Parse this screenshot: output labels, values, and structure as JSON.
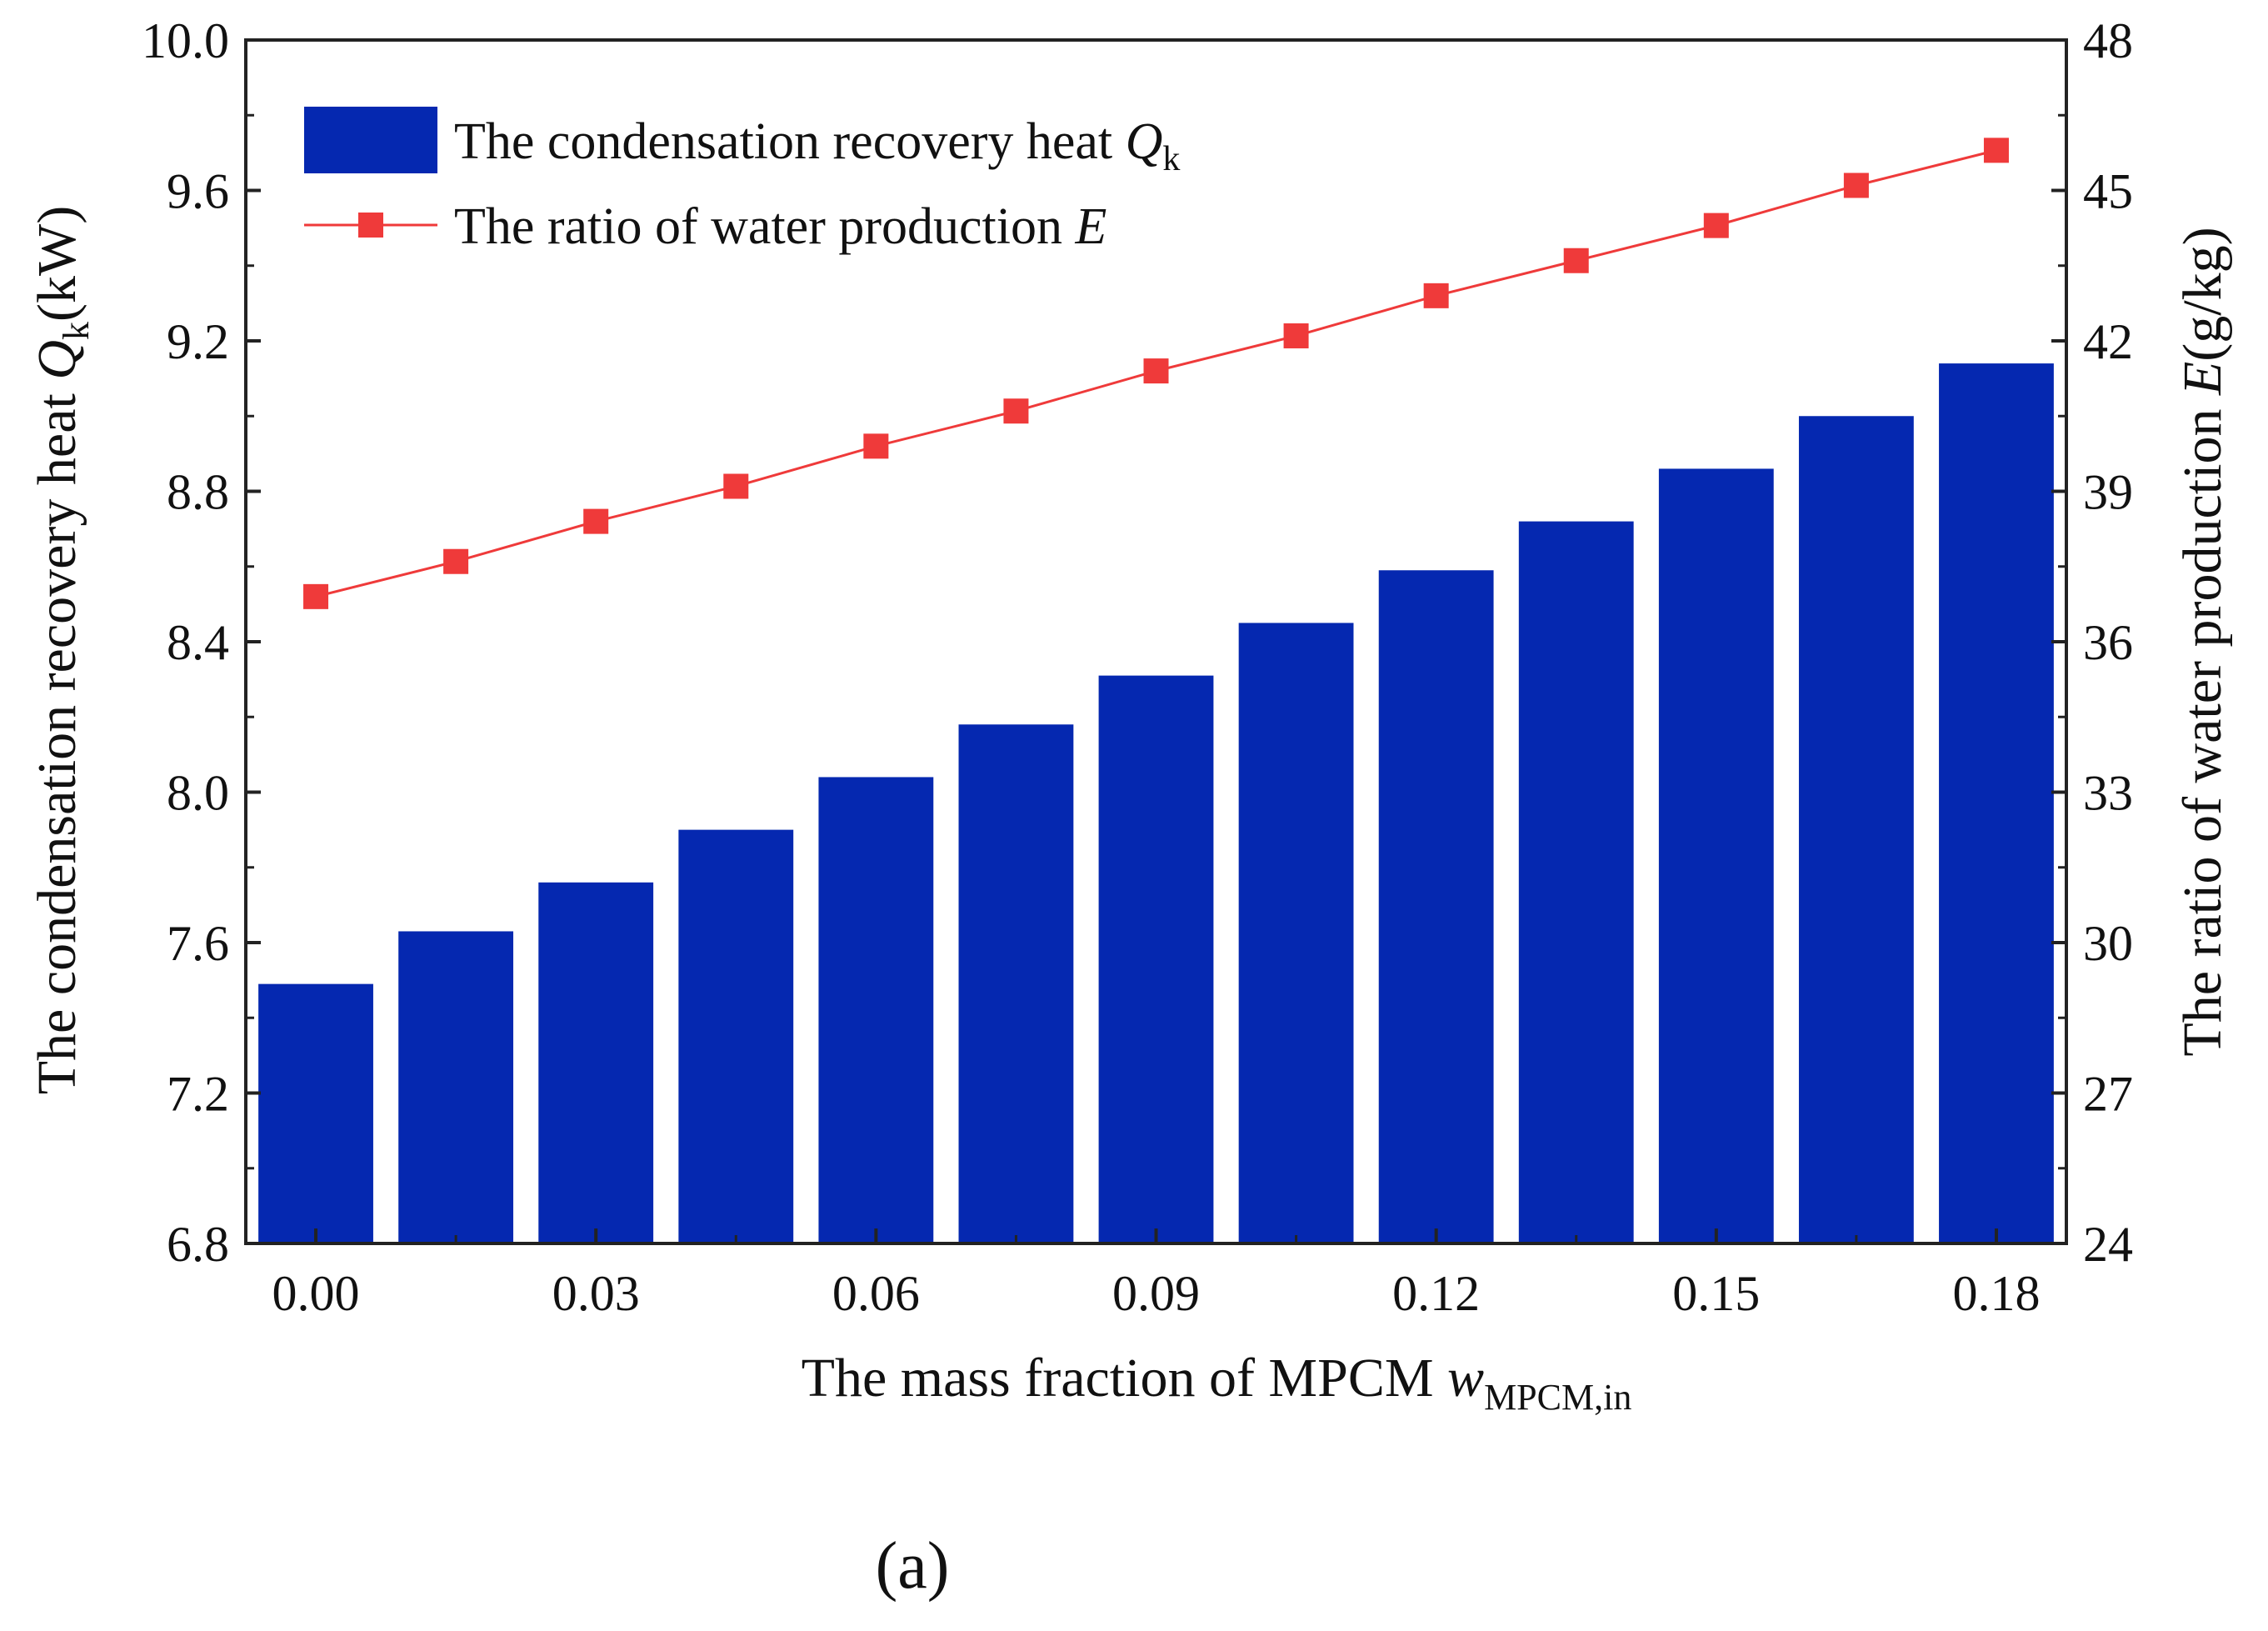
{
  "chart_data": {
    "type": "bar",
    "categories": [
      0.0,
      0.015,
      0.03,
      0.045,
      0.06,
      0.075,
      0.09,
      0.105,
      0.12,
      0.135,
      0.15,
      0.165,
      0.18
    ],
    "x_tick_labels": [
      "0.00",
      "0.03",
      "0.06",
      "0.09",
      "0.12",
      "0.15",
      "0.18"
    ],
    "x_ticks": [
      0.0,
      0.03,
      0.06,
      0.09,
      0.12,
      0.15,
      0.18
    ],
    "xlabel": {
      "main": "The mass fraction of MPCM ",
      "var": "w",
      "sub": "MPCM,in"
    },
    "left_axis": {
      "label": {
        "prefix": "The condensation recovery heat ",
        "var": "Q",
        "sub": "k",
        "unit": "(kW)"
      },
      "ylim": [
        6.8,
        10.0
      ],
      "ticks": [
        "6.8",
        "7.2",
        "7.6",
        "8.0",
        "8.4",
        "8.8",
        "9.2",
        "9.6",
        "10.0"
      ]
    },
    "right_axis": {
      "label": {
        "prefix": "The ratio of water production ",
        "var": "E",
        "unit": "(g/kg)"
      },
      "ylim": [
        24,
        48
      ],
      "ticks": [
        "24",
        "27",
        "30",
        "33",
        "36",
        "39",
        "42",
        "45",
        "48"
      ]
    },
    "series": [
      {
        "legend": {
          "prefix": "The condensation recovery heat ",
          "var": "Q",
          "sub": "k"
        },
        "kind": "bar",
        "axis": "left",
        "color": "#0528b0",
        "values": [
          7.49,
          7.63,
          7.76,
          7.9,
          8.04,
          8.18,
          8.31,
          8.45,
          8.59,
          8.72,
          8.86,
          9.0,
          9.14
        ]
      },
      {
        "legend": {
          "prefix": "The ratio of water production ",
          "var": "E",
          "sub": ""
        },
        "kind": "line",
        "marker": "square",
        "axis": "right",
        "color": "#ef3a3a",
        "values": [
          36.9,
          37.6,
          38.4,
          39.1,
          39.9,
          40.6,
          41.4,
          42.1,
          42.9,
          43.6,
          44.3,
          45.1,
          45.8
        ]
      }
    ],
    "legend_position": "top-left",
    "grid": false
  },
  "panel_label": "(a)"
}
